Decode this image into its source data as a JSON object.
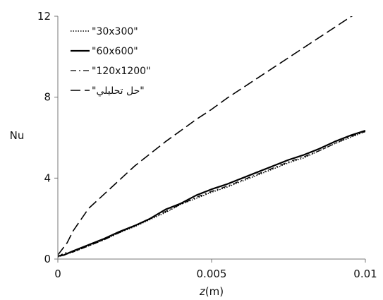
{
  "chart_data": {
    "type": "line",
    "title": "",
    "xlabel_italic": "z",
    "xlabel_unit": "(m)",
    "ylabel": "Nu",
    "xlim": [
      0,
      0.01
    ],
    "ylim": [
      0,
      12
    ],
    "xticks": [
      0,
      0.005,
      0.01
    ],
    "xtick_labels": [
      "0",
      "0.005",
      "0.01"
    ],
    "yticks": [
      0,
      4,
      8,
      12
    ],
    "ytick_labels": [
      "0",
      "4",
      "8",
      "12"
    ],
    "grid": false,
    "legend_position": "top-left",
    "series": [
      {
        "name": "\"30x300\"",
        "style": "dotted",
        "x": [
          0,
          0.0002,
          0.0005,
          0.001,
          0.0015,
          0.002,
          0.0025,
          0.003,
          0.0035,
          0.004,
          0.0045,
          0.005,
          0.0055,
          0.006,
          0.0065,
          0.007,
          0.0075,
          0.008,
          0.0085,
          0.009,
          0.0095,
          0.01
        ],
        "y": [
          0.1,
          0.2,
          0.35,
          0.65,
          0.95,
          1.3,
          1.6,
          1.95,
          2.3,
          2.7,
          3.0,
          3.3,
          3.55,
          3.85,
          4.15,
          4.45,
          4.75,
          5.0,
          5.35,
          5.7,
          6.0,
          6.3
        ]
      },
      {
        "name": "\"60x600\"",
        "style": "solid",
        "x": [
          0,
          0.0002,
          0.0005,
          0.001,
          0.0015,
          0.002,
          0.0025,
          0.003,
          0.0035,
          0.004,
          0.0045,
          0.005,
          0.0055,
          0.006,
          0.0065,
          0.007,
          0.0075,
          0.008,
          0.0085,
          0.009,
          0.0095,
          0.01
        ],
        "y": [
          0.15,
          0.2,
          0.4,
          0.7,
          1.0,
          1.35,
          1.65,
          2.0,
          2.45,
          2.75,
          3.15,
          3.45,
          3.7,
          4.0,
          4.3,
          4.6,
          4.9,
          5.15,
          5.45,
          5.8,
          6.1,
          6.35
        ]
      },
      {
        "name": "\"120x1200\"",
        "style": "dashdot",
        "x": [
          0,
          0.0002,
          0.0005,
          0.001,
          0.0015,
          0.002,
          0.0025,
          0.003,
          0.0035,
          0.004,
          0.0045,
          0.005,
          0.0055,
          0.006,
          0.0065,
          0.007,
          0.0075,
          0.008,
          0.0085,
          0.009,
          0.0095,
          0.01
        ],
        "y": [
          0.1,
          0.3,
          0.35,
          0.65,
          0.95,
          1.3,
          1.65,
          2.0,
          2.35,
          2.7,
          3.05,
          3.35,
          3.6,
          3.9,
          4.2,
          4.5,
          4.8,
          5.05,
          5.35,
          5.7,
          6.05,
          6.3
        ]
      },
      {
        "name": "\"حل تحليلي\"",
        "style": "longdash",
        "x": [
          0,
          0.0003,
          0.0005,
          0.001,
          0.0015,
          0.002,
          0.0025,
          0.003,
          0.0035,
          0.004,
          0.0045,
          0.005,
          0.0055,
          0.006,
          0.0065,
          0.007,
          0.0075,
          0.008,
          0.0085,
          0.009,
          0.0095,
          0.01
        ],
        "y": [
          0.2,
          0.8,
          1.4,
          2.5,
          3.2,
          3.9,
          4.6,
          5.2,
          5.8,
          6.35,
          6.9,
          7.4,
          7.95,
          8.45,
          8.95,
          9.45,
          9.95,
          10.45,
          10.95,
          11.45,
          11.95,
          12.4
        ]
      }
    ]
  }
}
